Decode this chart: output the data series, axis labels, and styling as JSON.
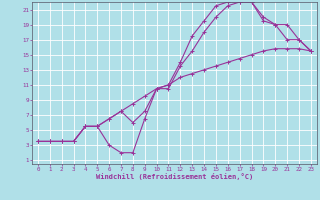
{
  "xlabel": "Windchill (Refroidissement éolien,°C)",
  "bg_color": "#b0e0e8",
  "line_color": "#993399",
  "grid_color": "#ffffff",
  "xlim": [
    -0.5,
    23.5
  ],
  "ylim": [
    0.5,
    22.0
  ],
  "xticks": [
    0,
    1,
    2,
    3,
    4,
    5,
    6,
    7,
    8,
    9,
    10,
    11,
    12,
    13,
    14,
    15,
    16,
    17,
    18,
    19,
    20,
    21,
    22,
    23
  ],
  "yticks": [
    1,
    3,
    5,
    7,
    9,
    11,
    13,
    15,
    17,
    19,
    21
  ],
  "line1_x": [
    0,
    1,
    2,
    3,
    4,
    5,
    6,
    7,
    8,
    9,
    10,
    11,
    12,
    13,
    14,
    15,
    16,
    17,
    18,
    19,
    20,
    21,
    22,
    23
  ],
  "line1_y": [
    3.5,
    3.5,
    3.5,
    3.5,
    5.5,
    5.5,
    6.5,
    7.5,
    8.5,
    9.5,
    10.5,
    11.0,
    12.0,
    12.5,
    13.0,
    13.5,
    14.0,
    14.5,
    15.0,
    15.5,
    15.8,
    15.8,
    15.8,
    15.5
  ],
  "line2_x": [
    0,
    1,
    2,
    3,
    4,
    5,
    6,
    7,
    8,
    9,
    10,
    11,
    12,
    13,
    14,
    15,
    16,
    17,
    18,
    19,
    20,
    21,
    22,
    23
  ],
  "line2_y": [
    3.5,
    3.5,
    3.5,
    3.5,
    5.5,
    5.5,
    3.0,
    2.0,
    2.0,
    6.5,
    10.5,
    11.0,
    14.0,
    17.5,
    19.5,
    21.5,
    22.0,
    22.0,
    22.0,
    20.0,
    19.0,
    19.0,
    17.0,
    15.5
  ],
  "line3_x": [
    0,
    1,
    2,
    3,
    4,
    5,
    6,
    7,
    8,
    9,
    10,
    11,
    12,
    13,
    14,
    15,
    16,
    17,
    18,
    19,
    20,
    21,
    22,
    23
  ],
  "line3_y": [
    3.5,
    3.5,
    3.5,
    3.5,
    5.5,
    5.5,
    6.5,
    7.5,
    6.0,
    7.5,
    10.5,
    10.5,
    13.5,
    15.5,
    18.0,
    20.0,
    21.5,
    22.0,
    22.0,
    19.5,
    19.0,
    17.0,
    17.0,
    15.5
  ]
}
